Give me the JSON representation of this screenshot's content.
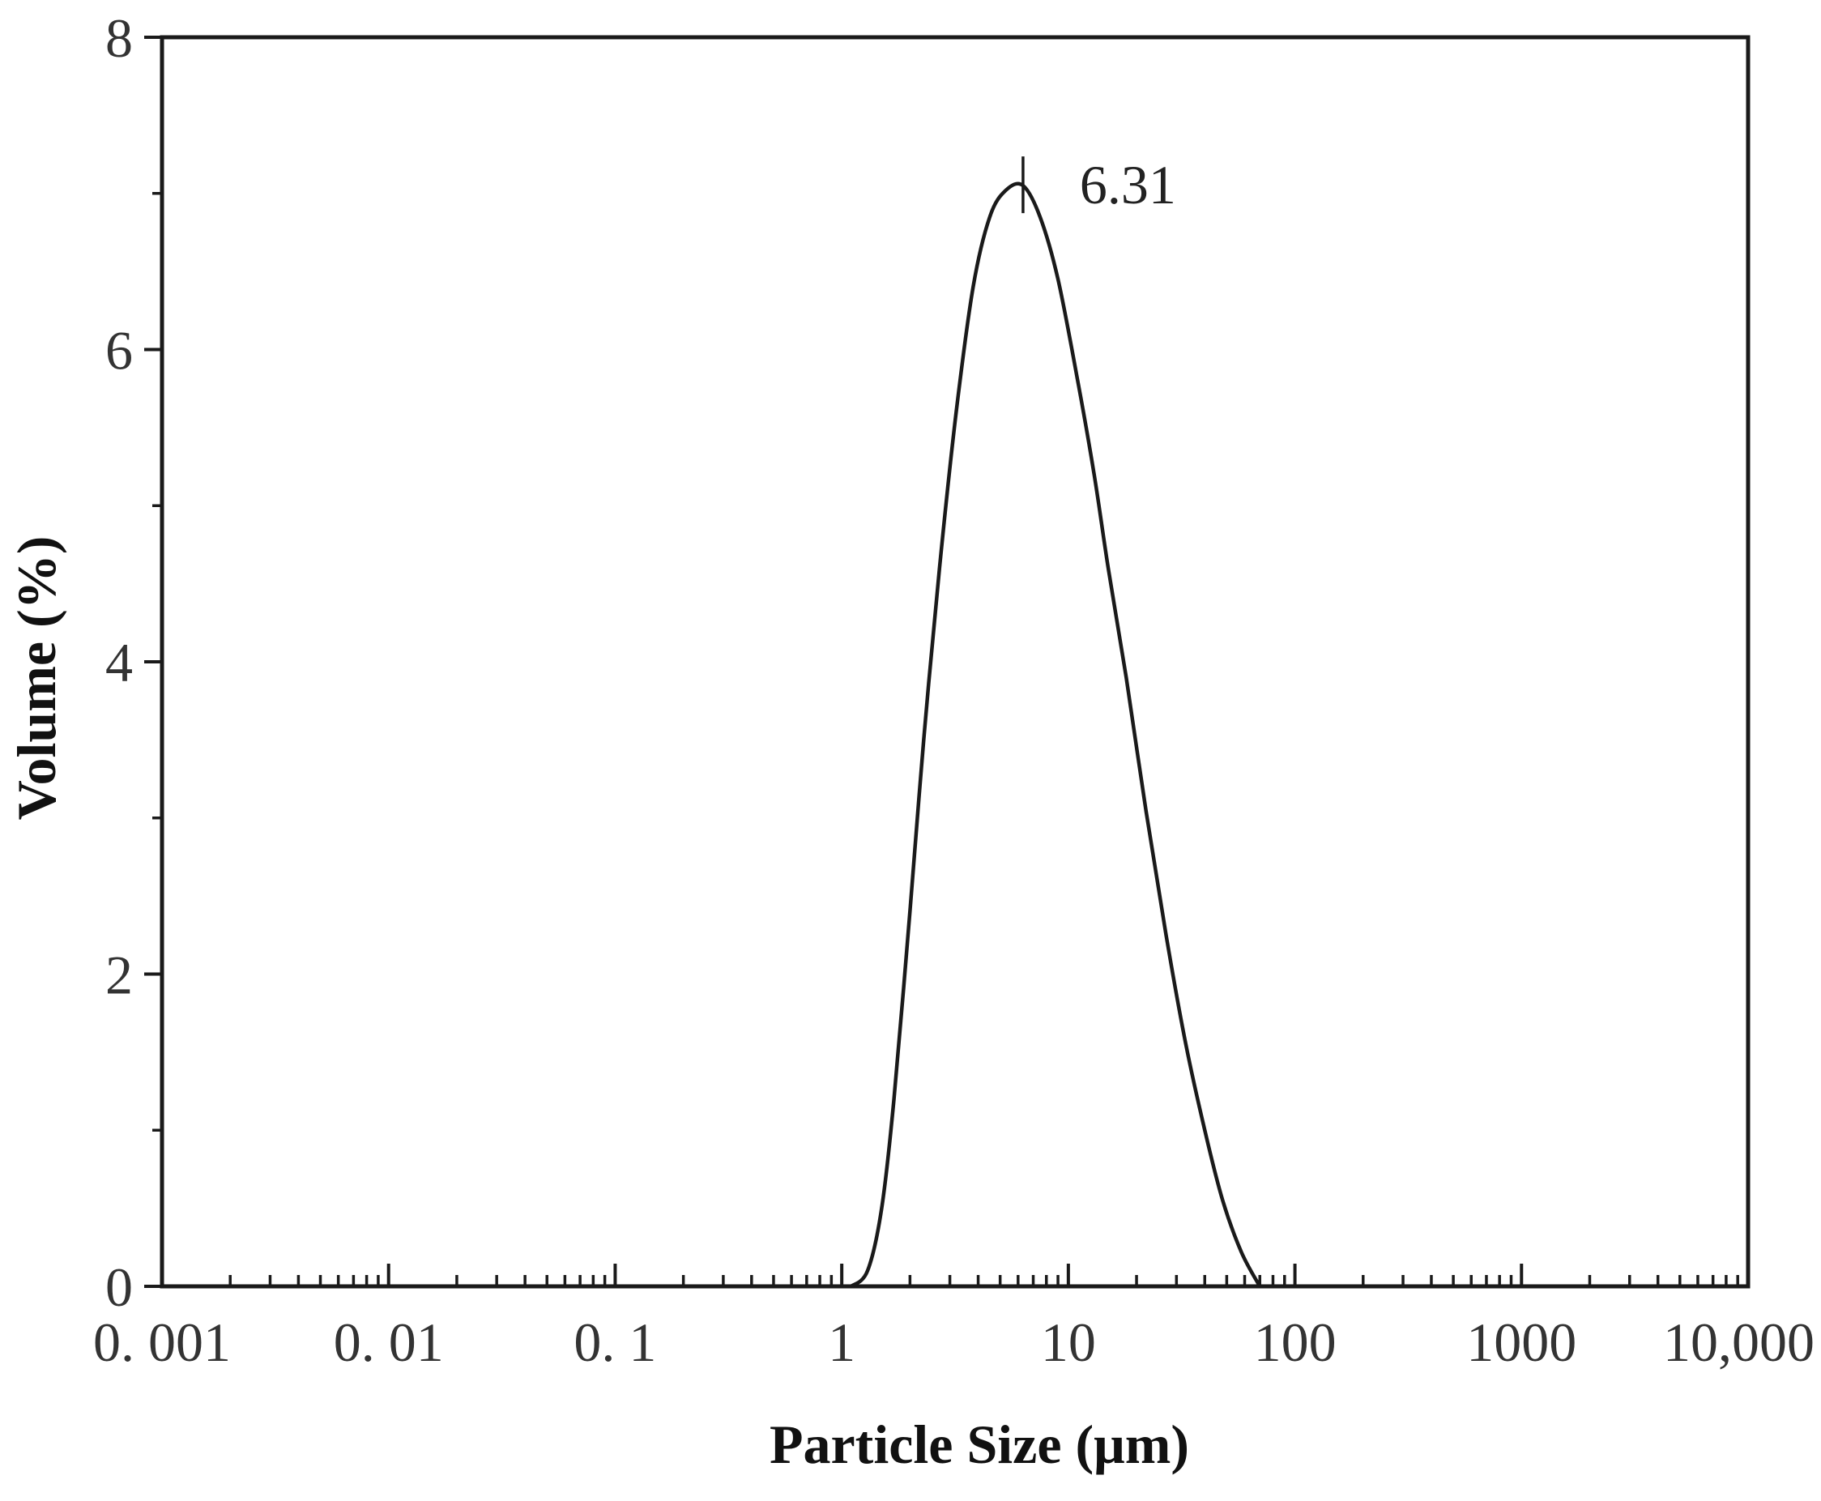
{
  "chart_data": {
    "type": "line",
    "title": "",
    "xlabel": "Particle Size (μm)",
    "ylabel": "Volume (%)",
    "x_scale": "log",
    "xlim": [
      0.001,
      10000
    ],
    "ylim": [
      0,
      8
    ],
    "x_ticks": [
      {
        "value": 0.001,
        "label": "0. 001"
      },
      {
        "value": 0.01,
        "label": "0. 01"
      },
      {
        "value": 0.1,
        "label": "0. 1"
      },
      {
        "value": 1,
        "label": "1"
      },
      {
        "value": 10,
        "label": "10"
      },
      {
        "value": 100,
        "label": "100"
      },
      {
        "value": 1000,
        "label": "1000"
      },
      {
        "value": 10000,
        "label": "10,000"
      }
    ],
    "y_ticks": [
      {
        "value": 0,
        "label": "0"
      },
      {
        "value": 2,
        "label": "2"
      },
      {
        "value": 4,
        "label": "4"
      },
      {
        "value": 6,
        "label": "6"
      },
      {
        "value": 8,
        "label": "8"
      }
    ],
    "y_minor_ticks": [
      1,
      3,
      5,
      7
    ],
    "grid": false,
    "legend": "none",
    "colors": {
      "line": "#1a1a1a",
      "axis": "#1a1a1a",
      "last_tick_label": "#1a1a4a"
    },
    "series": [
      {
        "x": [
          1.1,
          1.3,
          1.5,
          1.7,
          2.0,
          2.3,
          2.7,
          3.2,
          3.8,
          4.5,
          5.3,
          6.31,
          7.5,
          9.0,
          11,
          13,
          15,
          18,
          22,
          27,
          33,
          40,
          48,
          58,
          70
        ],
        "y": [
          0,
          0.1,
          0.5,
          1.2,
          2.4,
          3.5,
          4.6,
          5.6,
          6.4,
          6.85,
          7.02,
          7.05,
          6.85,
          6.45,
          5.8,
          5.2,
          4.6,
          3.9,
          3.05,
          2.25,
          1.55,
          1.0,
          0.55,
          0.22,
          0
        ]
      }
    ],
    "annotations": [
      {
        "text": "6.31",
        "x": 6.31,
        "y": 7.05
      }
    ]
  }
}
